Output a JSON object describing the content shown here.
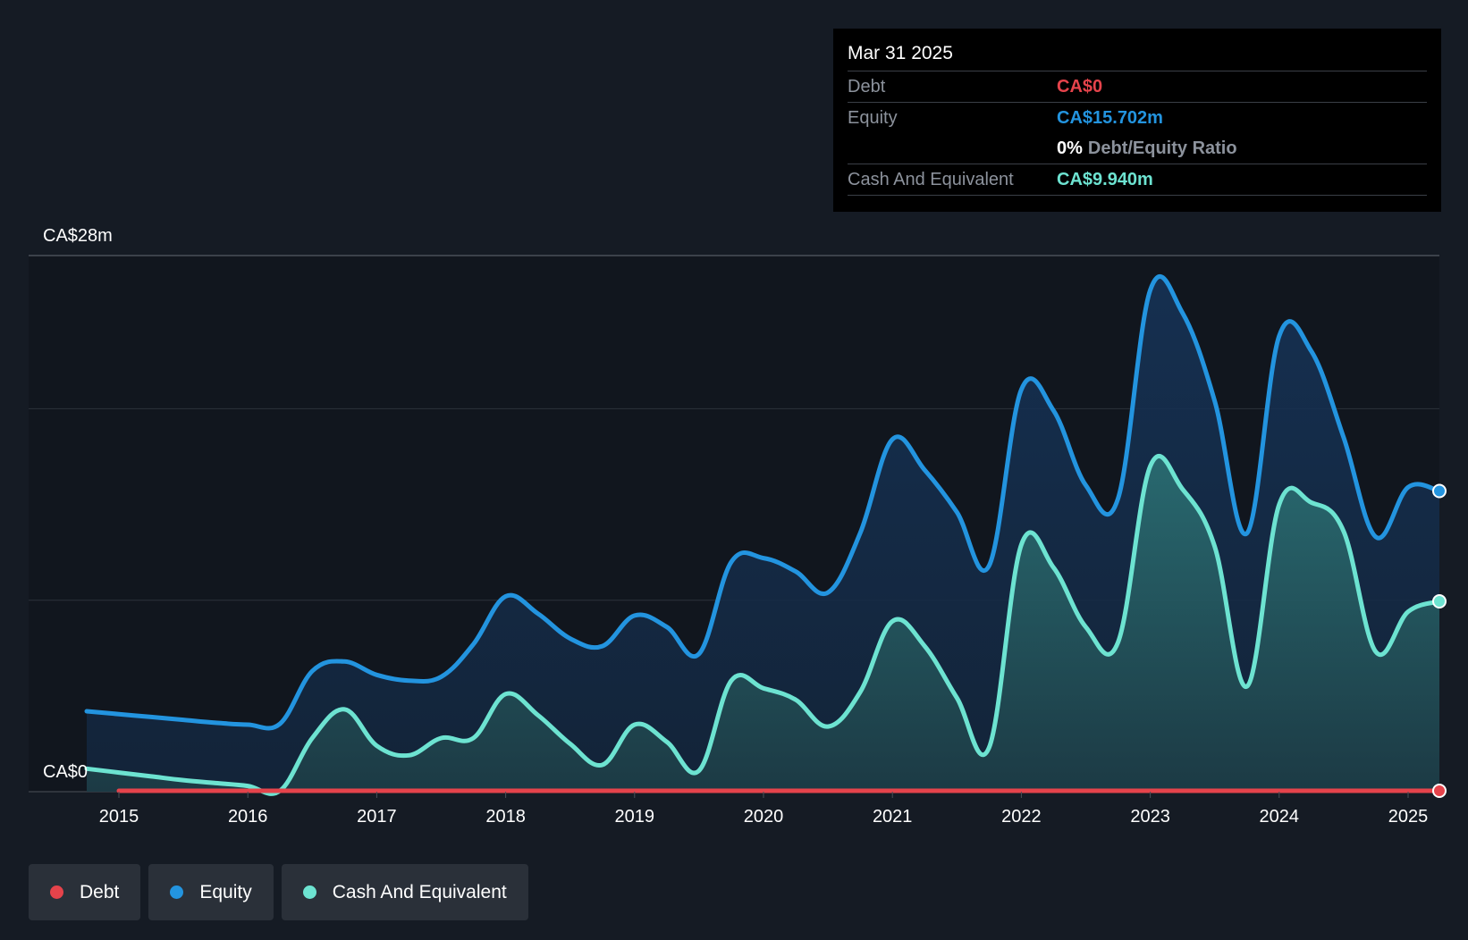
{
  "tooltip": {
    "date": "Mar 31 2025",
    "debt_label": "Debt",
    "debt_value": "CA$0",
    "equity_label": "Equity",
    "equity_value": "CA$15.702m",
    "ratio_value": "0%",
    "ratio_label": "Debt/Equity Ratio",
    "cash_label": "Cash And Equivalent",
    "cash_value": "CA$9.940m"
  },
  "legend": {
    "debt": "Debt",
    "equity": "Equity",
    "cash": "Cash And Equivalent"
  },
  "colors": {
    "debt": "#e5434b",
    "equity": "#2394df",
    "cash": "#6de3d1",
    "background": "#151b24"
  },
  "chart_data": {
    "type": "area",
    "y_axis_labels": [
      "CA$28m",
      "CA$0"
    ],
    "ylim": [
      0,
      28
    ],
    "xlim": [
      2014.75,
      2025.25
    ],
    "x_ticks": [
      2015,
      2016,
      2017,
      2018,
      2019,
      2020,
      2021,
      2022,
      2023,
      2024,
      2025
    ],
    "x_tick_labels": [
      "2015",
      "2016",
      "2017",
      "2018",
      "2019",
      "2020",
      "2021",
      "2022",
      "2023",
      "2024",
      "2025"
    ],
    "grid": true,
    "series": [
      {
        "name": "Equity",
        "x": [
          2014.75,
          2015.0,
          2015.25,
          2015.5,
          2015.75,
          2016.0,
          2016.25,
          2016.5,
          2016.75,
          2017.0,
          2017.25,
          2017.5,
          2017.75,
          2018.0,
          2018.25,
          2018.5,
          2018.75,
          2019.0,
          2019.25,
          2019.5,
          2019.75,
          2020.0,
          2020.25,
          2020.5,
          2020.75,
          2021.0,
          2021.25,
          2021.5,
          2021.75,
          2022.0,
          2022.25,
          2022.5,
          2022.75,
          2023.0,
          2023.25,
          2023.5,
          2023.75,
          2024.0,
          2024.25,
          2024.5,
          2024.75,
          2025.0,
          2025.25
        ],
        "y": [
          4.2,
          4.05,
          3.9,
          3.75,
          3.6,
          3.5,
          3.55,
          6.3,
          6.8,
          6.1,
          5.8,
          6.0,
          7.7,
          10.2,
          9.3,
          8.0,
          7.6,
          9.2,
          8.6,
          7.2,
          12.0,
          12.2,
          11.5,
          10.4,
          13.5,
          18.4,
          16.8,
          14.6,
          11.8,
          21.0,
          19.9,
          16.0,
          15.3,
          26.2,
          25.0,
          20.4,
          13.5,
          23.8,
          23.0,
          18.5,
          13.3,
          15.9,
          15.702
        ]
      },
      {
        "name": "Cash And Equivalent",
        "x": [
          2014.75,
          2015.0,
          2015.25,
          2015.5,
          2015.75,
          2016.0,
          2016.25,
          2016.5,
          2016.75,
          2017.0,
          2017.25,
          2017.5,
          2017.75,
          2018.0,
          2018.25,
          2018.5,
          2018.75,
          2019.0,
          2019.25,
          2019.5,
          2019.75,
          2020.0,
          2020.25,
          2020.5,
          2020.75,
          2021.0,
          2021.25,
          2021.5,
          2021.75,
          2022.0,
          2022.25,
          2022.5,
          2022.75,
          2023.0,
          2023.25,
          2023.5,
          2023.75,
          2024.0,
          2024.25,
          2024.5,
          2024.75,
          2025.0,
          2025.25
        ],
        "y": [
          1.2,
          1.0,
          0.8,
          0.6,
          0.45,
          0.3,
          0.05,
          2.8,
          4.3,
          2.4,
          1.9,
          2.8,
          2.8,
          5.1,
          4.0,
          2.5,
          1.4,
          3.5,
          2.6,
          1.1,
          5.8,
          5.4,
          4.8,
          3.4,
          5.2,
          8.9,
          7.6,
          4.9,
          2.3,
          12.9,
          11.7,
          8.6,
          7.8,
          17.0,
          15.8,
          12.8,
          5.5,
          15.0,
          15.1,
          13.6,
          7.3,
          9.4,
          9.94
        ]
      },
      {
        "name": "Debt",
        "x": [
          2015.0,
          2025.25
        ],
        "y": [
          0,
          0
        ]
      }
    ]
  }
}
